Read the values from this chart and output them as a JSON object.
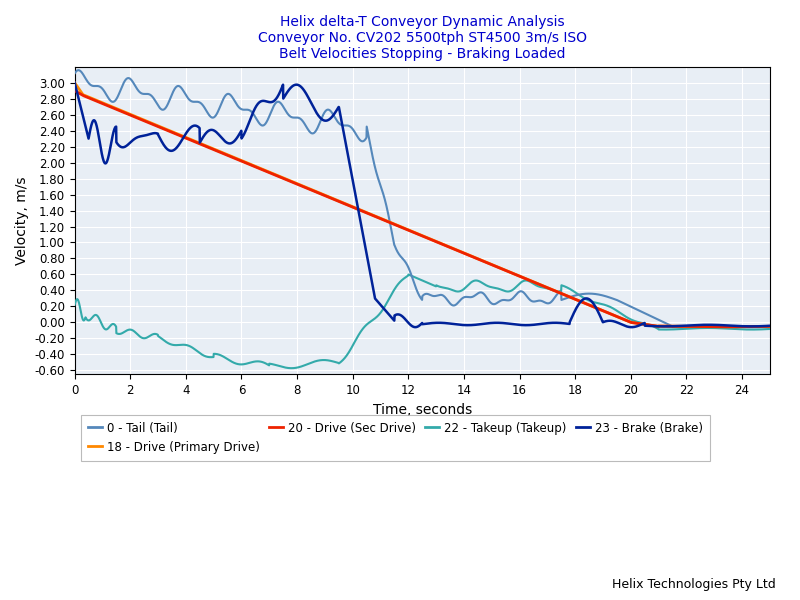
{
  "title_line1": "Helix delta-T Conveyor Dynamic Analysis",
  "title_line2": "Conveyor No. CV202 5500tph ST4500 3m/s ISO",
  "title_line3": "Belt Velocities Stopping - Braking Loaded",
  "xlabel": "Time, seconds",
  "ylabel": "Velocity, m/s",
  "xlim": [
    0,
    25
  ],
  "ylim": [
    -0.65,
    3.2
  ],
  "yticks": [
    -0.6,
    -0.4,
    -0.2,
    0.0,
    0.2,
    0.4,
    0.6,
    0.8,
    1.0,
    1.2,
    1.4,
    1.6,
    1.8,
    2.0,
    2.2,
    2.4,
    2.6,
    2.8,
    3.0
  ],
  "xticks": [
    0,
    2,
    4,
    6,
    8,
    10,
    12,
    14,
    16,
    18,
    20,
    22,
    24
  ],
  "background_color": "#ffffff",
  "plot_bg_color": "#e8eef5",
  "grid_color": "#ffffff",
  "title_color": "#0000cc",
  "legend_labels": [
    "0 - Tail (Tail)",
    "18 - Drive (Primary Drive)",
    "20 - Drive (Sec Drive)",
    "22 - Takeup (Takeup)",
    "23 - Brake (Brake)"
  ],
  "colors": {
    "tail": "#5588bb",
    "primary_drive": "#ff8800",
    "sec_drive": "#ee2200",
    "takeup": "#33aaaa",
    "brake": "#002299"
  },
  "footer_text": "Helix Technologies Pty Ltd"
}
